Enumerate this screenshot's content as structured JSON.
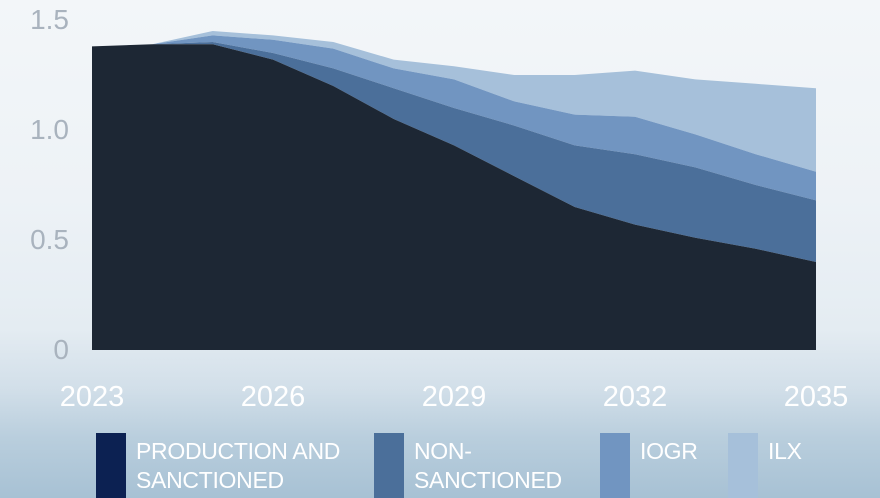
{
  "chart_data": {
    "type": "area",
    "stacked": true,
    "x": [
      2023,
      2024,
      2025,
      2026,
      2027,
      2028,
      2029,
      2030,
      2031,
      2032,
      2033,
      2034,
      2035
    ],
    "xticks": [
      "2023",
      "2026",
      "2029",
      "2032",
      "2035"
    ],
    "yticks": [
      "0",
      "0.5",
      "1.0",
      "1.5"
    ],
    "xlim": [
      2023,
      2035
    ],
    "ylim": [
      0,
      1.5
    ],
    "grid": false,
    "legend_position": "bottom",
    "series": [
      {
        "name": "PRODUCTION AND SANCTIONED",
        "color": "#1d2734",
        "legend_color": "#0c2152",
        "values": [
          1.38,
          1.39,
          1.39,
          1.32,
          1.2,
          1.05,
          0.93,
          0.79,
          0.65,
          0.57,
          0.51,
          0.46,
          0.4
        ]
      },
      {
        "name": "NON-SANCTIONED",
        "color": "#4b6f9a",
        "values": [
          0,
          0,
          0.01,
          0.03,
          0.08,
          0.14,
          0.17,
          0.23,
          0.28,
          0.32,
          0.32,
          0.29,
          0.28
        ]
      },
      {
        "name": "IOGR",
        "color": "#7195c1",
        "values": [
          0,
          0,
          0.03,
          0.06,
          0.09,
          0.09,
          0.13,
          0.11,
          0.14,
          0.17,
          0.15,
          0.14,
          0.13
        ]
      },
      {
        "name": "ILX",
        "color": "#a6c0da",
        "values": [
          0,
          0,
          0.02,
          0.02,
          0.03,
          0.04,
          0.06,
          0.12,
          0.18,
          0.21,
          0.25,
          0.32,
          0.38
        ]
      }
    ]
  }
}
